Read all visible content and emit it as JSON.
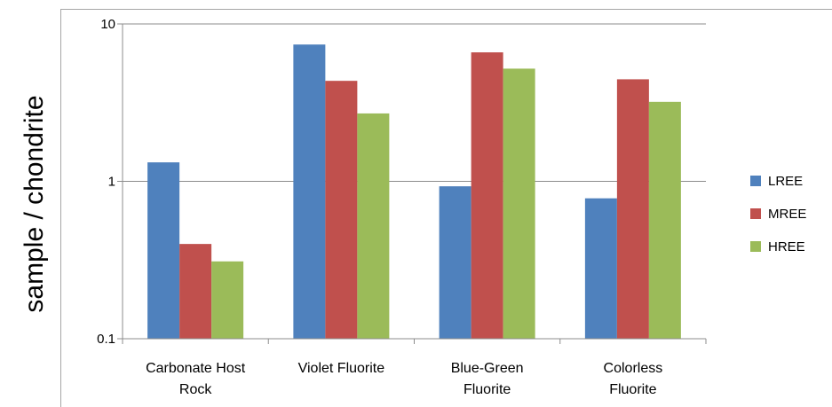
{
  "chart_data": {
    "type": "bar",
    "title": "",
    "xlabel": "",
    "ylabel": "sample / chondrite",
    "yscale": "log",
    "ylim": [
      0.1,
      10
    ],
    "yticks": [
      {
        "value": 0.1,
        "label": "0.1"
      },
      {
        "value": 1,
        "label": "1"
      },
      {
        "value": 10,
        "label": "10"
      }
    ],
    "grid": true,
    "legend_position": "right",
    "categories": [
      [
        "Carbonate Host",
        "Rock"
      ],
      [
        "Violet Fluorite"
      ],
      [
        "Blue-Green",
        "Fluorite"
      ],
      [
        "Colorless",
        "Fluorite"
      ]
    ],
    "series": [
      {
        "name": "LREE",
        "color": "#4f81bd",
        "values": [
          1.32,
          7.4,
          0.93,
          0.78
        ]
      },
      {
        "name": "MREE",
        "color": "#c0504d",
        "values": [
          0.4,
          4.35,
          6.6,
          4.45
        ]
      },
      {
        "name": "HREE",
        "color": "#9bbb59",
        "values": [
          0.31,
          2.7,
          5.2,
          3.2
        ]
      }
    ]
  }
}
